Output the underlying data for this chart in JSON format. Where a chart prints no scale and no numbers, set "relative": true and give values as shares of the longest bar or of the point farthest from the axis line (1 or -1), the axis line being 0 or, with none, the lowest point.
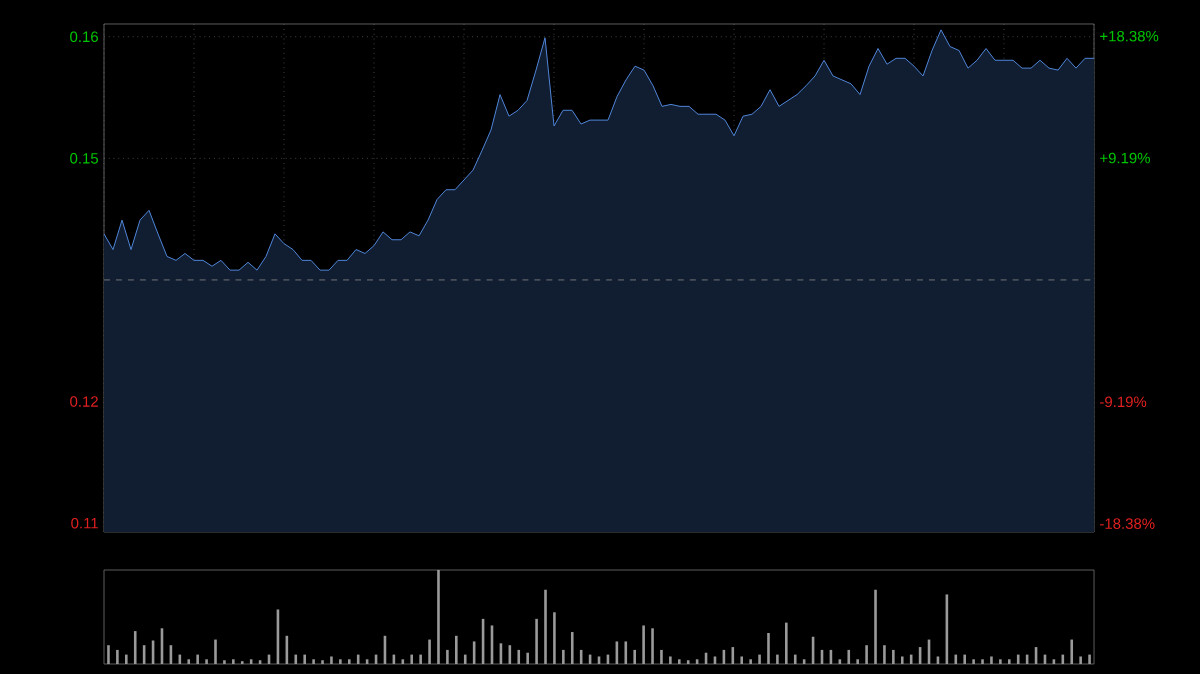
{
  "chart_data": [
    {
      "type": "area",
      "categories": [
        null,
        null,
        null,
        null,
        null,
        null,
        null,
        null,
        null,
        null,
        null,
        null,
        null,
        null,
        null,
        null,
        null,
        null,
        null,
        null,
        null,
        null,
        null,
        null,
        null,
        null,
        null,
        null,
        null,
        null,
        null,
        null,
        null,
        null,
        null,
        null,
        null,
        null,
        null,
        null,
        null,
        null,
        null,
        null,
        null,
        null,
        null,
        null,
        null,
        null,
        null,
        null,
        null,
        null,
        null,
        null,
        null,
        null,
        null,
        null,
        null,
        null,
        null,
        null,
        null,
        null,
        null,
        null,
        null,
        null,
        null,
        null,
        null,
        null,
        null,
        null,
        null,
        null,
        null,
        null,
        null,
        null,
        null,
        null,
        null,
        null,
        null,
        null,
        null,
        null,
        null,
        null,
        null,
        null,
        null,
        null,
        null,
        null,
        null,
        null,
        null,
        null,
        null,
        null,
        null,
        null,
        null,
        null,
        null,
        null,
        null
      ],
      "values": [
        0.1399,
        0.1383,
        0.1413,
        0.1383,
        0.1413,
        0.1423,
        0.1399,
        0.1376,
        0.1372,
        0.1379,
        0.1372,
        0.1372,
        0.1366,
        0.1372,
        0.1362,
        0.1362,
        0.137,
        0.1362,
        0.1376,
        0.1399,
        0.1389,
        0.1383,
        0.1372,
        0.1372,
        0.1362,
        0.1362,
        0.1372,
        0.1372,
        0.1383,
        0.1379,
        0.1387,
        0.1401,
        0.1393,
        0.1393,
        0.1401,
        0.1397,
        0.1413,
        0.1434,
        0.1444,
        0.1444,
        0.1454,
        0.1464,
        0.1484,
        0.1505,
        0.1541,
        0.1519,
        0.1525,
        0.1535,
        0.1566,
        0.1599,
        0.1509,
        0.1525,
        0.1525,
        0.1511,
        0.1515,
        0.1515,
        0.1515,
        0.1539,
        0.1556,
        0.157,
        0.1566,
        0.155,
        0.1529,
        0.1531,
        0.1529,
        0.1529,
        0.1521,
        0.1521,
        0.1521,
        0.1515,
        0.1499,
        0.1519,
        0.1521,
        0.1529,
        0.1546,
        0.1529,
        0.1535,
        0.1541,
        0.155,
        0.156,
        0.1576,
        0.156,
        0.1556,
        0.1552,
        0.1541,
        0.157,
        0.1588,
        0.1572,
        0.1578,
        0.1578,
        0.157,
        0.156,
        0.1586,
        0.1607,
        0.159,
        0.1586,
        0.1568,
        0.1576,
        0.1588,
        0.1576,
        0.1576,
        0.1576,
        0.1568,
        0.1568,
        0.1576,
        0.1568,
        0.1566,
        0.1578,
        0.1568,
        0.1578,
        0.1578
      ],
      "color": "#4f86d9",
      "ylim": [
        0.1095,
        0.1613
      ],
      "yticks": [
        {
          "value": 0.16,
          "label": "0.16"
        },
        {
          "value": 0.1476,
          "label": "0.15"
        },
        {
          "value": 0.1228,
          "label": "0.12"
        },
        {
          "value": 0.1104,
          "label": "0.11"
        }
      ],
      "y2lim": [
        -19.01,
        19.3
      ],
      "y2ticks": [
        {
          "value": 18.38,
          "label": "+18.38%"
        },
        {
          "value": 9.19,
          "label": "+9.19%"
        },
        {
          "value": -9.19,
          "label": "-9.19%"
        },
        {
          "value": -18.38,
          "label": "-18.38%"
        }
      ],
      "ref_lines": [
        {
          "axis": "y",
          "value": 0.1352,
          "color": "#8c8c8c",
          "line_style": "dashed"
        }
      ],
      "grid": true,
      "tick_labels": "y"
    },
    {
      "type": "bar",
      "relative": true,
      "color": "#9a9a9a",
      "categories": [
        null,
        null,
        null,
        null,
        null,
        null,
        null,
        null,
        null,
        null,
        null,
        null,
        null,
        null,
        null,
        null,
        null,
        null,
        null,
        null,
        null,
        null,
        null,
        null,
        null,
        null,
        null,
        null,
        null,
        null,
        null,
        null,
        null,
        null,
        null,
        null,
        null,
        null,
        null,
        null,
        null,
        null,
        null,
        null,
        null,
        null,
        null,
        null,
        null,
        null,
        null,
        null,
        null,
        null,
        null,
        null,
        null,
        null,
        null,
        null,
        null,
        null,
        null,
        null,
        null,
        null,
        null,
        null,
        null,
        null,
        null,
        null,
        null,
        null,
        null,
        null,
        null,
        null,
        null,
        null,
        null,
        null,
        null,
        null,
        null,
        null,
        null,
        null,
        null,
        null,
        null,
        null,
        null,
        null,
        null,
        null,
        null,
        null,
        null,
        null,
        null,
        null,
        null,
        null,
        null,
        null,
        null,
        null,
        null,
        null,
        null
      ],
      "values": [
        0.2,
        0.15,
        0.1,
        0.35,
        0.2,
        0.25,
        0.38,
        0.2,
        0.1,
        0.05,
        0.1,
        0.05,
        0.26,
        0.04,
        0.05,
        0.03,
        0.05,
        0.04,
        0.1,
        0.58,
        0.3,
        0.1,
        0.1,
        0.05,
        0.04,
        0.08,
        0.05,
        0.05,
        0.1,
        0.05,
        0.1,
        0.3,
        0.1,
        0.05,
        0.1,
        0.1,
        0.26,
        1.0,
        0.15,
        0.3,
        0.1,
        0.24,
        0.48,
        0.41,
        0.22,
        0.2,
        0.15,
        0.12,
        0.48,
        0.79,
        0.55,
        0.15,
        0.34,
        0.15,
        0.1,
        0.08,
        0.1,
        0.24,
        0.24,
        0.15,
        0.41,
        0.38,
        0.15,
        0.08,
        0.05,
        0.04,
        0.05,
        0.12,
        0.08,
        0.15,
        0.18,
        0.08,
        0.05,
        0.1,
        0.33,
        0.1,
        0.44,
        0.1,
        0.05,
        0.29,
        0.15,
        0.15,
        0.05,
        0.15,
        0.05,
        0.2,
        0.79,
        0.2,
        0.15,
        0.08,
        0.1,
        0.18,
        0.26,
        0.08,
        0.74,
        0.1,
        0.1,
        0.05,
        0.05,
        0.08,
        0.05,
        0.05,
        0.1,
        0.1,
        0.18,
        0.1,
        0.05,
        0.1,
        0.26,
        0.08,
        0.1
      ],
      "tick_labels": false
    }
  ]
}
